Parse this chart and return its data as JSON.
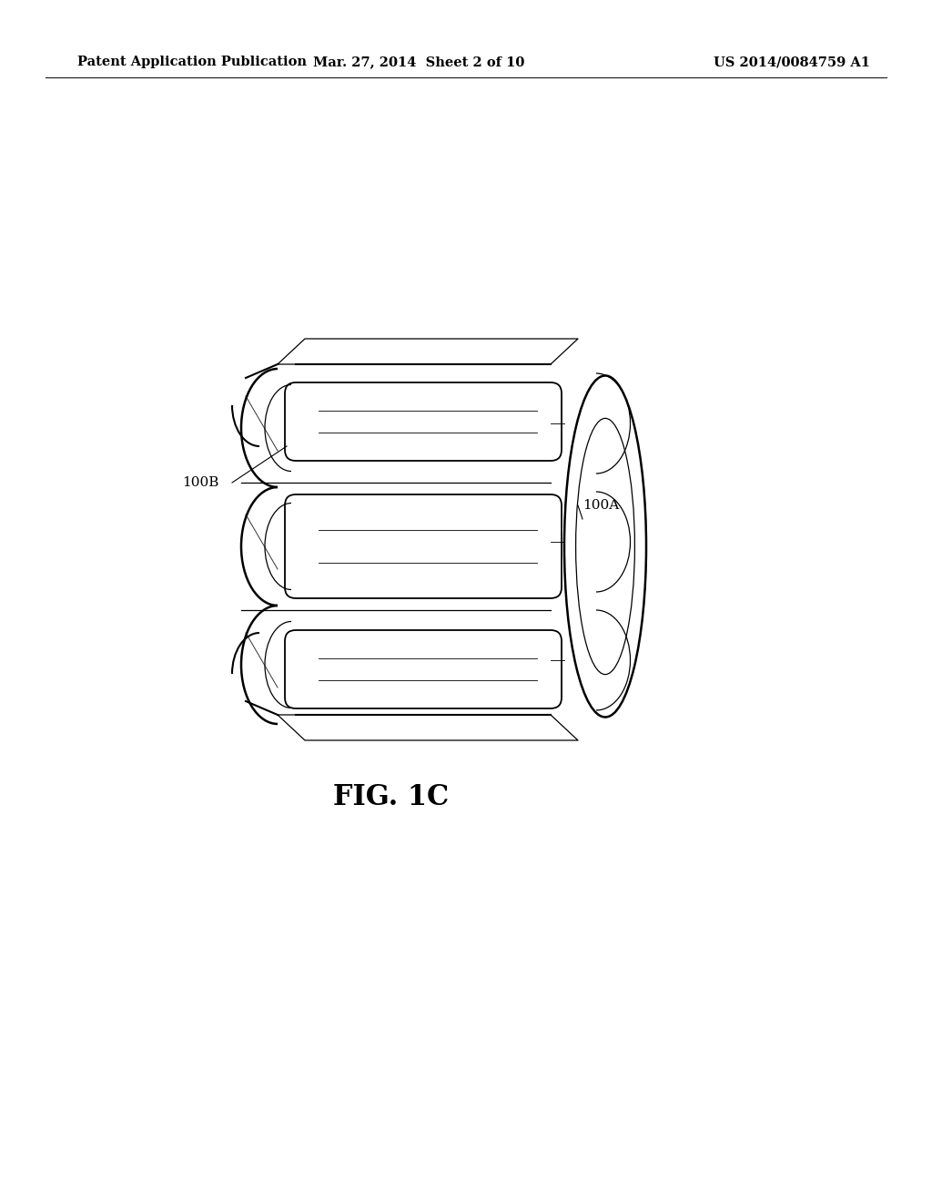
{
  "bg_color": "#ffffff",
  "line_color": "#000000",
  "header_left": "Patent Application Publication",
  "header_center": "Mar. 27, 2014  Sheet 2 of 10",
  "header_right": "US 2014/0084759 A1",
  "header_fontsize": 10.5,
  "fig_label": "FIG. 1C",
  "fig_label_fontsize": 22,
  "label_100A": "100A",
  "label_100B": "100B",
  "label_fontsize": 11
}
